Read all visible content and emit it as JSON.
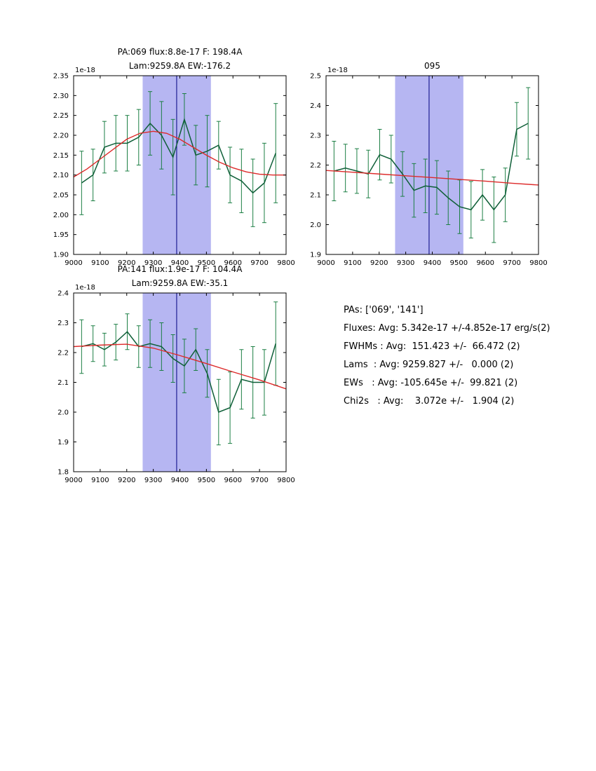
{
  "page": {
    "background": "#ffffff"
  },
  "colors": {
    "data_line": "#0f5f38",
    "error_bar": "#1c7f44",
    "fit_line": "#dd2a2a",
    "band_fill": "#b6b6f2",
    "band_center": "#000080",
    "axis": "#000000"
  },
  "stats_panel": {
    "lines": [
      "PAs: ['069', '141']",
      "Fluxes: Avg: 5.342e-17 +/-4.852e-17 erg/s(2)",
      "FWHMs : Avg:  151.423 +/-  66.472 (2)",
      "Lams  : Avg: 9259.827 +/-   0.000 (2)",
      "EWs   : Avg: -105.645e +/-  99.821 (2)",
      "Chi2s   : Avg:    3.072e +/-   1.904 (2)"
    ]
  },
  "chart_data": [
    {
      "type": "line",
      "title_lines": [
        "PA:069 flux:8.8e-17 F: 198.4A",
        "Lam:9259.8A EW:-176.2"
      ],
      "offset_label": "1e-18",
      "xlim": [
        9000,
        9800
      ],
      "ylim": [
        1.9,
        2.35
      ],
      "xticks": [
        "9000",
        "9100",
        "9200",
        "9300",
        "9400",
        "9500",
        "9600",
        "9700",
        "9800"
      ],
      "yticks": [
        "1.90",
        "1.95",
        "2.00",
        "2.05",
        "2.10",
        "2.15",
        "2.20",
        "2.25",
        "2.30",
        "2.35"
      ],
      "band": {
        "x0": 9260,
        "x1": 9517,
        "center": 9388
      },
      "series": [
        {
          "name": "spectrum",
          "x": [
            9030,
            9073,
            9116,
            9159,
            9202,
            9245,
            9288,
            9331,
            9374,
            9417,
            9460,
            9503,
            9546,
            9589,
            9632,
            9675,
            9718,
            9761
          ],
          "y": [
            2.08,
            2.1,
            2.17,
            2.18,
            2.18,
            2.195,
            2.23,
            2.2,
            2.145,
            2.24,
            2.15,
            2.16,
            2.175,
            2.1,
            2.085,
            2.055,
            2.08,
            2.155
          ],
          "yerr": [
            0.08,
            0.065,
            0.065,
            0.07,
            0.07,
            0.07,
            0.08,
            0.085,
            0.095,
            0.065,
            0.075,
            0.09,
            0.06,
            0.07,
            0.08,
            0.085,
            0.1,
            0.125
          ]
        },
        {
          "name": "fit",
          "x": [
            9000,
            9050,
            9100,
            9150,
            9200,
            9250,
            9300,
            9350,
            9400,
            9450,
            9500,
            9550,
            9600,
            9650,
            9700,
            9750,
            9800
          ],
          "y": [
            2.095,
            2.115,
            2.14,
            2.165,
            2.19,
            2.205,
            2.21,
            2.205,
            2.19,
            2.17,
            2.15,
            2.132,
            2.118,
            2.108,
            2.102,
            2.1,
            2.1
          ]
        }
      ]
    },
    {
      "type": "line",
      "title_lines": [
        "095"
      ],
      "offset_label": "1e-18",
      "xlim": [
        9000,
        9800
      ],
      "ylim": [
        1.9,
        2.5
      ],
      "xticks": [
        "9000",
        "9100",
        "9200",
        "9300",
        "9400",
        "9500",
        "9600",
        "9700",
        "9800"
      ],
      "yticks": [
        "1.9",
        "2.0",
        "2.1",
        "2.2",
        "2.3",
        "2.4",
        "2.5"
      ],
      "band": {
        "x0": 9260,
        "x1": 9517,
        "center": 9388
      },
      "series": [
        {
          "name": "spectrum",
          "x": [
            9030,
            9073,
            9116,
            9159,
            9202,
            9245,
            9288,
            9331,
            9374,
            9417,
            9460,
            9503,
            9546,
            9589,
            9632,
            9675,
            9718,
            9761
          ],
          "y": [
            2.18,
            2.19,
            2.18,
            2.17,
            2.235,
            2.22,
            2.17,
            2.115,
            2.13,
            2.125,
            2.09,
            2.06,
            2.05,
            2.1,
            2.05,
            2.1,
            2.32,
            2.34
          ],
          "yerr": [
            0.1,
            0.08,
            0.075,
            0.08,
            0.085,
            0.08,
            0.075,
            0.09,
            0.09,
            0.09,
            0.09,
            0.09,
            0.095,
            0.085,
            0.11,
            0.09,
            0.09,
            0.12
          ]
        },
        {
          "name": "fit",
          "x": [
            9000,
            9100,
            9200,
            9300,
            9400,
            9500,
            9600,
            9700,
            9800
          ],
          "y": [
            2.182,
            2.176,
            2.17,
            2.164,
            2.158,
            2.152,
            2.146,
            2.139,
            2.133
          ]
        }
      ]
    },
    {
      "type": "line",
      "title_lines": [
        "PA:141 flux:1.9e-17 F: 104.4A",
        "Lam:9259.8A EW:-35.1"
      ],
      "offset_label": "1e-18",
      "xlim": [
        9000,
        9800
      ],
      "ylim": [
        1.8,
        2.4
      ],
      "xticks": [
        "9000",
        "9100",
        "9200",
        "9300",
        "9400",
        "9500",
        "9600",
        "9700",
        "9800"
      ],
      "yticks": [
        "1.8",
        "1.9",
        "2.0",
        "2.1",
        "2.2",
        "2.3",
        "2.4"
      ],
      "band": {
        "x0": 9260,
        "x1": 9517,
        "center": 9388
      },
      "series": [
        {
          "name": "spectrum",
          "x": [
            9030,
            9073,
            9116,
            9159,
            9202,
            9245,
            9288,
            9331,
            9374,
            9417,
            9460,
            9503,
            9546,
            9589,
            9632,
            9675,
            9718,
            9761
          ],
          "y": [
            2.22,
            2.23,
            2.21,
            2.235,
            2.27,
            2.22,
            2.23,
            2.22,
            2.18,
            2.155,
            2.21,
            2.13,
            2.0,
            2.015,
            2.11,
            2.1,
            2.1,
            2.23
          ],
          "yerr": [
            0.09,
            0.06,
            0.055,
            0.06,
            0.06,
            0.07,
            0.08,
            0.08,
            0.08,
            0.09,
            0.07,
            0.08,
            0.11,
            0.12,
            0.1,
            0.12,
            0.11,
            0.14
          ]
        },
        {
          "name": "fit",
          "x": [
            9000,
            9100,
            9200,
            9300,
            9400,
            9500,
            9600,
            9700,
            9800
          ],
          "y": [
            2.22,
            2.225,
            2.228,
            2.215,
            2.19,
            2.163,
            2.135,
            2.108,
            2.078
          ]
        }
      ]
    }
  ]
}
